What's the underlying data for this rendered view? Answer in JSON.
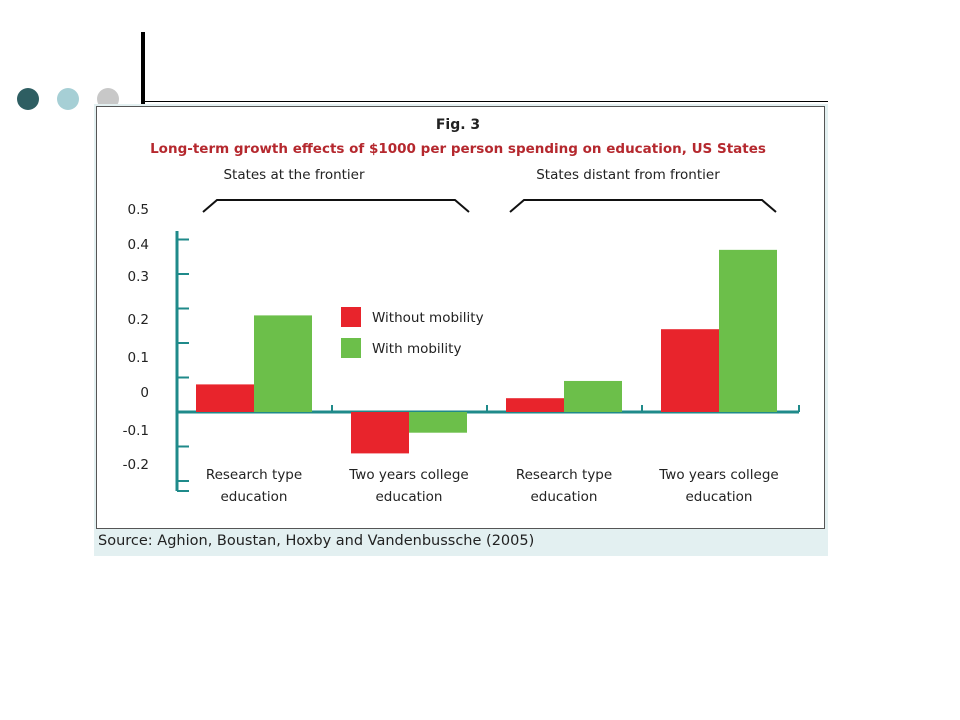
{
  "slide": {
    "dots": [
      {
        "name": "dot-dark",
        "color": "#2e5e62"
      },
      {
        "name": "dot-light",
        "color": "#a6cfd5"
      },
      {
        "name": "dot-grey",
        "color": "#c8c8c8"
      }
    ]
  },
  "figure": {
    "source": "Source: Aghion, Boustan, Hoxby and Vandenbussche (2005)"
  },
  "chart_data": {
    "type": "bar",
    "fig_label": "Fig. 3",
    "title": "Long-term growth effects of $1000 per person spending on education, US States",
    "groups": [
      "States at the frontier",
      "States distant from frontier"
    ],
    "categories": [
      [
        "Research type",
        "education"
      ],
      [
        "Two years college",
        "education"
      ],
      [
        "Research type",
        "education"
      ],
      [
        "Two years college",
        "education"
      ]
    ],
    "series": [
      {
        "name": "Without mobility",
        "color": "#e8242c",
        "values": [
          0.08,
          -0.12,
          0.04,
          0.24
        ]
      },
      {
        "name": "With mobility",
        "color": "#6cbf4a",
        "values": [
          0.28,
          -0.06,
          0.09,
          0.47
        ]
      }
    ],
    "y_ticks": [
      "0.5",
      "0.4",
      "0.3",
      "0.2",
      "0.1",
      "0",
      "-0.1",
      "-0.2"
    ],
    "ylim": [
      -0.2,
      0.5
    ],
    "legend_position": "center",
    "grid": false,
    "axis_color": "#1f8a8a",
    "title_color": "#b5282e"
  }
}
